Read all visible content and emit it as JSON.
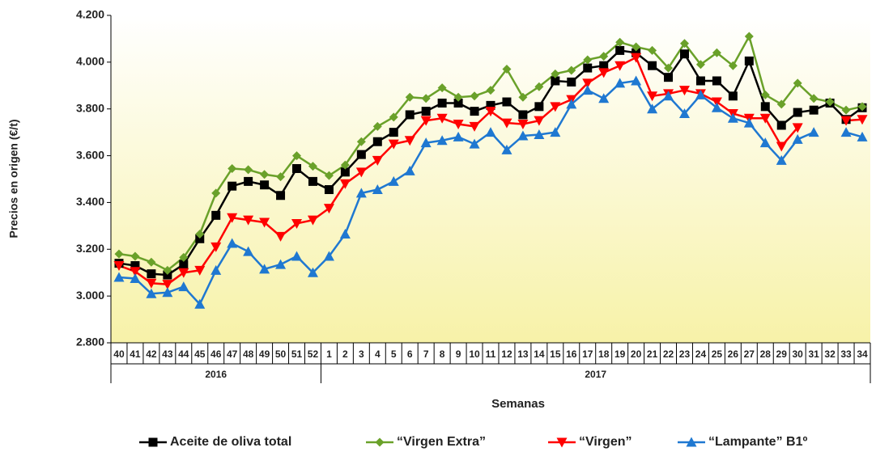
{
  "chart_data": {
    "type": "line",
    "y_label": "Precios en origen (€/t)",
    "x_label": "Semanas",
    "categories": [
      "40",
      "41",
      "42",
      "43",
      "44",
      "45",
      "46",
      "47",
      "48",
      "49",
      "50",
      "51",
      "52",
      "1",
      "2",
      "3",
      "4",
      "5",
      "6",
      "7",
      "8",
      "9",
      "10",
      "11",
      "12",
      "13",
      "14",
      "15",
      "16",
      "17",
      "18",
      "19",
      "20",
      "21",
      "22",
      "23",
      "24",
      "25",
      "26",
      "27",
      "28",
      "29",
      "30",
      "31",
      "32",
      "33",
      "34"
    ],
    "group_labels": [
      "2016",
      "2017"
    ],
    "ylim": [
      2800,
      4200
    ],
    "yticks": [
      {
        "value": 2800,
        "label": "2.800"
      },
      {
        "value": 3000,
        "label": "3.000"
      },
      {
        "value": 3200,
        "label": "3.200"
      },
      {
        "value": 3400,
        "label": "3.400"
      },
      {
        "value": 3600,
        "label": "3.600"
      },
      {
        "value": 3800,
        "label": "3.800"
      },
      {
        "value": 4000,
        "label": "4.000"
      },
      {
        "value": 4200,
        "label": "4.200"
      }
    ],
    "series": [
      {
        "name": "Aceite de oliva total",
        "color": "#000000",
        "marker": "square",
        "values": [
          3140,
          3130,
          3095,
          3090,
          3135,
          3245,
          3345,
          3470,
          3490,
          3475,
          3430,
          3545,
          3490,
          3455,
          3530,
          3605,
          3660,
          3700,
          3775,
          3790,
          3825,
          3825,
          3790,
          3815,
          3830,
          3775,
          3810,
          3920,
          3915,
          3975,
          3985,
          4050,
          4040,
          3985,
          3935,
          4035,
          3920,
          3920,
          3855,
          4005,
          3810,
          3730,
          3785,
          3795,
          3825,
          3755,
          3805
        ]
      },
      {
        "name": "“Virgen Extra”",
        "color": "#6aa12a",
        "marker": "diamond",
        "values": [
          3180,
          3170,
          3145,
          3110,
          3165,
          3265,
          3440,
          3545,
          3540,
          3520,
          3510,
          3600,
          3555,
          3515,
          3560,
          3660,
          3725,
          3765,
          3850,
          3845,
          3890,
          3850,
          3855,
          3880,
          3970,
          3850,
          3895,
          3950,
          3965,
          4010,
          4025,
          4085,
          4065,
          4050,
          3975,
          4080,
          3990,
          4040,
          3985,
          4110,
          3860,
          3820,
          3910,
          3845,
          3830,
          3795,
          3810
        ]
      },
      {
        "name": "“Virgen”",
        "color": "#ff0000",
        "marker": "triangle-down",
        "values": [
          3130,
          3105,
          3055,
          3050,
          3100,
          3110,
          3210,
          3335,
          3325,
          3315,
          3255,
          3310,
          3325,
          3375,
          3480,
          3530,
          3580,
          3650,
          3665,
          3750,
          3760,
          3735,
          3725,
          3790,
          3740,
          3735,
          3750,
          3810,
          3840,
          3910,
          3955,
          3985,
          4020,
          3855,
          3865,
          3880,
          3865,
          3830,
          3780,
          3760,
          3760,
          3640,
          3720,
          null,
          null,
          3750,
          3755
        ]
      },
      {
        "name": "“Lampante” B1º",
        "color": "#1f78d1",
        "marker": "triangle-up",
        "values": [
          3080,
          3075,
          3010,
          3015,
          3040,
          2965,
          3110,
          3225,
          3190,
          3115,
          3135,
          3170,
          3100,
          3170,
          3265,
          3440,
          3455,
          3490,
          3535,
          3655,
          3665,
          3680,
          3650,
          3700,
          3625,
          3685,
          3690,
          3700,
          3820,
          3880,
          3845,
          3910,
          3920,
          3800,
          3855,
          3780,
          3860,
          3805,
          3760,
          3740,
          3655,
          3580,
          3670,
          3700,
          null,
          3700,
          3680
        ]
      }
    ]
  }
}
